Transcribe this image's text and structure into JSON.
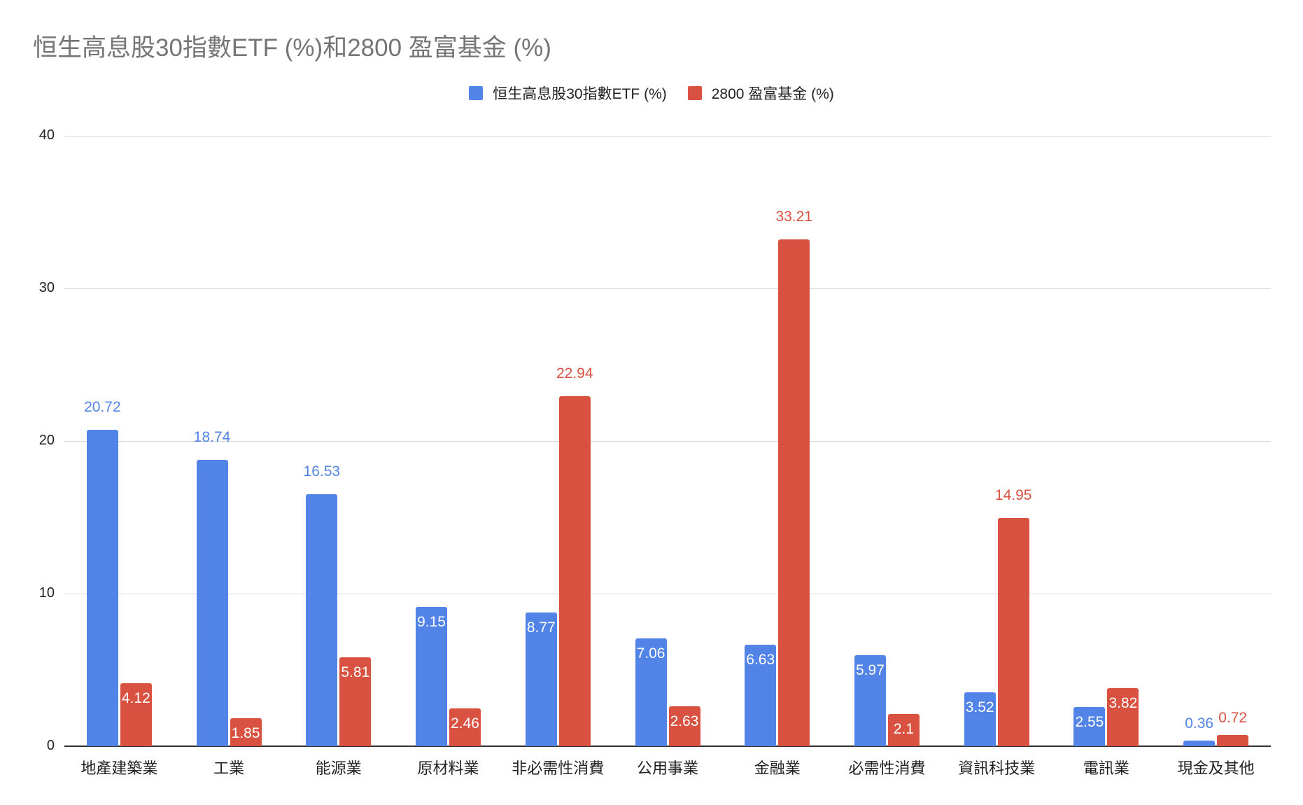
{
  "chart_data": {
    "type": "bar",
    "title": "恒生高息股30指數ETF (%)和2800 盈富基金 (%)",
    "xlabel": "",
    "ylabel": "",
    "ylim": [
      0,
      40
    ],
    "yticks": [
      0,
      10,
      20,
      30,
      40
    ],
    "grid": true,
    "legend_position": "top",
    "categories": [
      "地產建築業",
      "工業",
      "能源業",
      "原材料業",
      "非必需性消費",
      "公用事業",
      "金融業",
      "必需性消費",
      "資訊科技業",
      "電訊業",
      "現金及其他"
    ],
    "series": [
      {
        "name": "恒生高息股30指數ETF (%)",
        "color": "#5284e8",
        "values": [
          20.72,
          18.74,
          16.53,
          9.15,
          8.77,
          7.06,
          6.63,
          5.97,
          3.52,
          2.55,
          0.36
        ]
      },
      {
        "name": "2800 盈富基金 (%)",
        "color": "#d95140",
        "values": [
          4.12,
          1.85,
          5.81,
          2.46,
          22.94,
          2.63,
          33.21,
          2.1,
          14.95,
          3.82,
          0.72
        ]
      }
    ],
    "value_labels": {
      "s0": [
        "20.72",
        "18.74",
        "16.53",
        "9.15",
        "8.77",
        "7.06",
        "6.63",
        "5.97",
        "3.52",
        "2.55",
        "0.36"
      ],
      "s1": [
        "4.12",
        "1.85",
        "5.81",
        "2.46",
        "22.94",
        "2.63",
        "33.21",
        "2.1",
        "14.95",
        "3.82",
        "0.72"
      ]
    },
    "ytick_labels": [
      "0",
      "10",
      "20",
      "30",
      "40"
    ]
  },
  "legend": {
    "items": [
      {
        "label": "恒生高息股30指數ETF (%)",
        "color": "#5284e8"
      },
      {
        "label": "2800 盈富基金 (%)",
        "color": "#d95140"
      }
    ]
  }
}
